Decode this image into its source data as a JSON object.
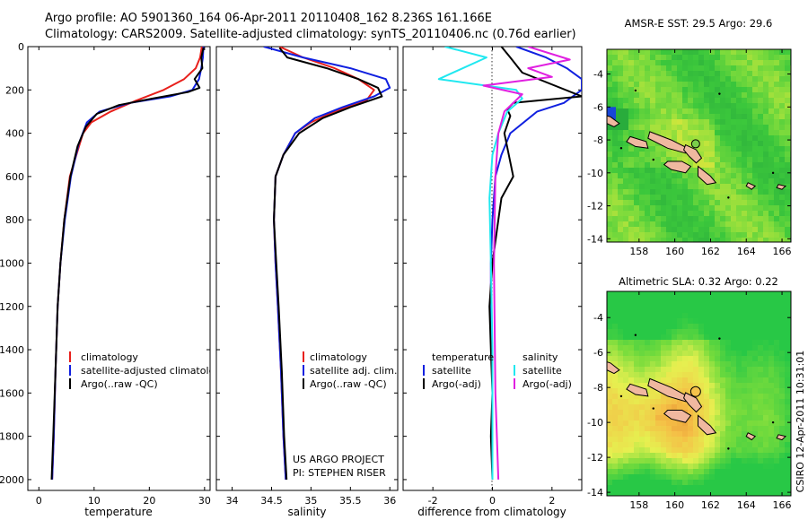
{
  "header": {
    "line1": "Argo profile: AO 5901360_164 06-Apr-2011 20110408_162 8.236S 161.166E",
    "line2": "Climatology: CARS2009. Satellite-adjusted climatology: synTS_20110406.nc (0.76d earlier)"
  },
  "credit": {
    "project": "US ARGO PROJECT",
    "pi": "PI: STEPHEN RISER",
    "stamp": "CSIRO 12-Apr-2011 10:31:01"
  },
  "colors": {
    "climatology": "#e8201c",
    "satellite": "#1020e0",
    "argo": "#000000",
    "satellite_salinity": "#20e8f0",
    "argo_salinity": "#e020e0"
  },
  "chart_data": [
    {
      "type": "line",
      "name": "temperature-profile",
      "xlabel": "temperature",
      "ylabel": "",
      "xlim": [
        -2,
        31
      ],
      "ylim": [
        2050,
        0
      ],
      "xticks": [
        0,
        10,
        20,
        30
      ],
      "yticks": [
        0,
        200,
        400,
        600,
        800,
        1000,
        1200,
        1400,
        1600,
        1800,
        2000
      ],
      "legend": [
        "climatology",
        "satellite-adjusted climatology",
        "Argo(..raw -QC)"
      ],
      "series": [
        {
          "name": "climatology",
          "color": "#e8201c",
          "x": [
            29.5,
            29.2,
            28.4,
            26.3,
            22.6,
            17.5,
            13.0,
            9.5,
            8.0,
            6.8,
            5.6,
            4.6,
            3.9,
            3.4,
            3.0,
            2.7,
            2.4
          ],
          "y": [
            0,
            50,
            100,
            150,
            200,
            250,
            300,
            350,
            400,
            500,
            600,
            800,
            1000,
            1200,
            1500,
            1800,
            2000
          ]
        },
        {
          "name": "satellite",
          "color": "#1020e0",
          "x": [
            29.8,
            29.7,
            29.4,
            29.0,
            27.8,
            23.8,
            16.5,
            11.0,
            8.7,
            7.2,
            5.8,
            4.7,
            3.9,
            3.4,
            3.0,
            2.7,
            2.4
          ],
          "y": [
            0,
            50,
            100,
            150,
            200,
            230,
            260,
            300,
            350,
            450,
            600,
            800,
            1000,
            1200,
            1500,
            1800,
            2000
          ]
        },
        {
          "name": "argo",
          "color": "#000000",
          "x": [
            29.8,
            29.4,
            29.6,
            28.2,
            29.1,
            27.0,
            20.5,
            14.5,
            10.5,
            8.5,
            7.0,
            5.7,
            4.6,
            3.9,
            3.4,
            3.0,
            2.6,
            2.3
          ],
          "y": [
            5,
            50,
            100,
            150,
            190,
            210,
            240,
            270,
            310,
            370,
            460,
            600,
            800,
            1000,
            1200,
            1500,
            1800,
            2000
          ]
        }
      ]
    },
    {
      "type": "line",
      "name": "salinity-profile",
      "xlabel": "salinity",
      "ylabel": "",
      "xlim": [
        33.8,
        36.1
      ],
      "ylim": [
        2050,
        0
      ],
      "xticks": [
        34,
        34.5,
        35,
        35.5,
        36
      ],
      "legend": [
        "climatology",
        "satellite adj. clim.",
        "Argo(..raw -QC)"
      ],
      "series": [
        {
          "name": "climatology",
          "color": "#e8201c",
          "x": [
            34.6,
            34.9,
            35.3,
            35.6,
            35.8,
            35.7,
            35.3,
            35.0,
            34.8,
            34.65,
            34.55,
            34.53,
            34.55,
            34.58,
            34.62,
            34.65,
            34.68
          ],
          "y": [
            0,
            50,
            100,
            150,
            200,
            250,
            300,
            350,
            400,
            500,
            600,
            800,
            1000,
            1200,
            1500,
            1800,
            2000
          ]
        },
        {
          "name": "satellite",
          "color": "#1020e0",
          "x": [
            34.4,
            34.9,
            35.5,
            35.95,
            36.0,
            35.8,
            35.4,
            35.05,
            34.8,
            34.65,
            34.55,
            34.53,
            34.55,
            34.58,
            34.62,
            34.65,
            34.68
          ],
          "y": [
            0,
            50,
            100,
            150,
            190,
            230,
            280,
            330,
            400,
            500,
            600,
            800,
            1000,
            1200,
            1500,
            1800,
            2000
          ]
        },
        {
          "name": "argo",
          "color": "#000000",
          "x": [
            34.6,
            34.7,
            35.2,
            35.6,
            35.85,
            35.9,
            35.5,
            35.15,
            34.85,
            34.65,
            34.55,
            34.53,
            34.56,
            34.59,
            34.63,
            34.66,
            34.69
          ],
          "y": [
            5,
            50,
            100,
            150,
            190,
            230,
            280,
            330,
            400,
            500,
            600,
            800,
            1000,
            1200,
            1500,
            1800,
            2000
          ]
        }
      ]
    },
    {
      "type": "line",
      "name": "difference-profile",
      "xlabel": "difference from climatology",
      "ylabel": "",
      "xlim": [
        -3,
        3
      ],
      "ylim": [
        2050,
        0
      ],
      "xticks": [
        -2,
        0,
        2
      ],
      "legend": [
        "temperature",
        "satellite",
        "Argo(-adj)",
        "salinity",
        "satellite",
        "Argo(-adj)"
      ],
      "series": [
        {
          "name": "satellite",
          "quantity": "temperature",
          "color": "#1020e0",
          "x": [
            0.8,
            1.8,
            2.5,
            3.0,
            3.0,
            2.4,
            1.5,
            0.6,
            0.3,
            0.1,
            0.0,
            -0.05,
            -0.05,
            0.0,
            0.0,
            0.0
          ],
          "y": [
            0,
            50,
            100,
            150,
            200,
            260,
            300,
            400,
            500,
            600,
            800,
            1000,
            1200,
            1500,
            1800,
            2000
          ]
        },
        {
          "name": "Argo(-adj)",
          "quantity": "temperature",
          "color": "#000000",
          "x": [
            0.3,
            0.6,
            1.0,
            3.0,
            0.7,
            0.5,
            0.6,
            0.4,
            0.7,
            0.3,
            0.2,
            0.0,
            -0.1,
            -0.05,
            0.0,
            -0.05,
            0.0
          ],
          "y": [
            0,
            50,
            120,
            230,
            260,
            290,
            320,
            400,
            600,
            700,
            800,
            1000,
            1200,
            1400,
            1600,
            1800,
            2000
          ]
        },
        {
          "name": "satellite",
          "quantity": "salinity",
          "color": "#20e8f0",
          "x": [
            -1.6,
            -0.2,
            -1.8,
            0.8,
            1.0,
            0.5,
            0.2,
            0.0,
            -0.1,
            -0.05,
            0.0,
            0.0,
            0.0
          ],
          "y": [
            0,
            50,
            150,
            200,
            240,
            300,
            400,
            500,
            700,
            1000,
            1400,
            1800,
            2000
          ]
        },
        {
          "name": "Argo(-adj)",
          "quantity": "salinity",
          "color": "#e020e0",
          "x": [
            1.2,
            2.6,
            1.2,
            2.0,
            -0.3,
            1.0,
            0.4,
            0.2,
            0.1,
            0.05,
            0.1,
            0.2
          ],
          "y": [
            0,
            60,
            100,
            140,
            180,
            220,
            300,
            400,
            600,
            1000,
            1600,
            2000
          ]
        }
      ]
    },
    {
      "type": "heatmap",
      "name": "sst-map",
      "title": "AMSR-E SST: 29.5 Argo: 29.6",
      "xlim": [
        156.2,
        166.5
      ],
      "ylim": [
        -14.2,
        -2.5
      ],
      "xticks": [
        158,
        160,
        162,
        164,
        166
      ],
      "yticks": [
        -4,
        -6,
        -8,
        -10,
        -12,
        -14
      ],
      "marker": {
        "lon": 161.166,
        "lat": -8.236
      }
    },
    {
      "type": "heatmap",
      "name": "sla-map",
      "title": "Altimetric SLA: 0.32 Argo: 0.22",
      "xlim": [
        156.2,
        166.5
      ],
      "ylim": [
        -14.2,
        -2.5
      ],
      "xticks": [
        158,
        160,
        162,
        164,
        166
      ],
      "yticks": [
        -4,
        -6,
        -8,
        -10,
        -12,
        -14
      ],
      "marker": {
        "lon": 161.166,
        "lat": -8.236
      }
    }
  ]
}
